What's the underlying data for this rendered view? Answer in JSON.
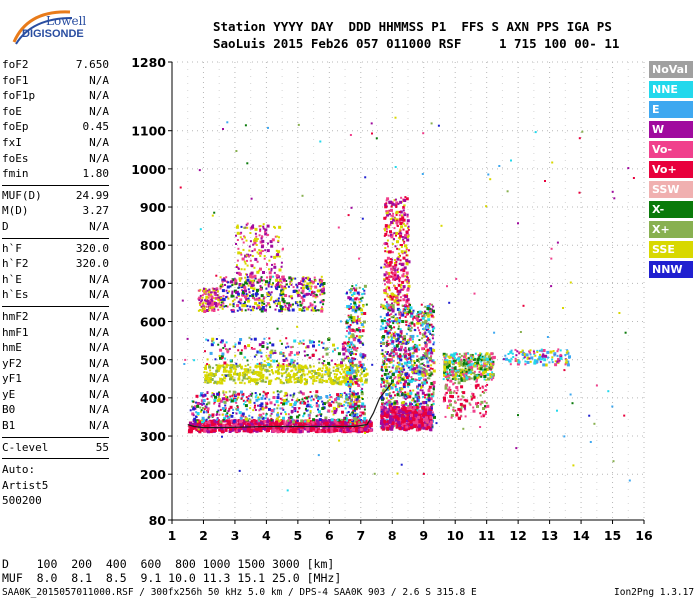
{
  "logo": {
    "top": "Lowell",
    "bottom": "DIGISONDE"
  },
  "header": {
    "line1": "Station YYYY DAY  DDD HHMMSS P1  FFS S AXN PPS IGA PS",
    "line2": "SaoLuis 2015 Feb26 057 011000 RSF     1 715 100 00- 11"
  },
  "params_group1": [
    {
      "label": "foF2",
      "value": "7.650"
    },
    {
      "label": "foF1",
      "value": "N/A"
    },
    {
      "label": "foF1p",
      "value": "N/A"
    },
    {
      "label": "foE",
      "value": "N/A"
    },
    {
      "label": "foEp",
      "value": "0.45"
    },
    {
      "label": "fxI",
      "value": "N/A"
    },
    {
      "label": "foEs",
      "value": "N/A"
    },
    {
      "label": "fmin",
      "value": "1.80"
    }
  ],
  "params_group2": [
    {
      "label": "MUF(D)",
      "value": "24.99"
    },
    {
      "label": "M(D)",
      "value": "3.27"
    },
    {
      "label": "D",
      "value": "N/A"
    }
  ],
  "params_group3": [
    {
      "label": "h`F",
      "value": "320.0"
    },
    {
      "label": "h`F2",
      "value": "320.0"
    },
    {
      "label": "h`E",
      "value": "N/A"
    },
    {
      "label": "h`Es",
      "value": "N/A"
    }
  ],
  "params_group4": [
    {
      "label": "hmF2",
      "value": "N/A"
    },
    {
      "label": "hmF1",
      "value": "N/A"
    },
    {
      "label": "hmE",
      "value": "N/A"
    },
    {
      "label": "yF2",
      "value": "N/A"
    },
    {
      "label": "yF1",
      "value": "N/A"
    },
    {
      "label": "yE",
      "value": "N/A"
    },
    {
      "label": "B0",
      "value": "N/A"
    },
    {
      "label": "B1",
      "value": "N/A"
    }
  ],
  "clevel": {
    "label": "C-level",
    "value": "55"
  },
  "auto": {
    "line1": "Auto:",
    "line2": "Artist5",
    "line3": "500200"
  },
  "legend": [
    {
      "label": "NoVal",
      "color": "#a0a0a0"
    },
    {
      "label": "NNE",
      "color": "#22d8ec"
    },
    {
      "label": "E",
      "color": "#3ea8f0"
    },
    {
      "label": "W",
      "color": "#a00a9e"
    },
    {
      "label": "Vo-",
      "color": "#f0408c"
    },
    {
      "label": "Vo+",
      "color": "#e8003c"
    },
    {
      "label": "SSW",
      "color": "#f0b0b0"
    },
    {
      "label": "X-",
      "color": "#0a7a0a"
    },
    {
      "label": "X+",
      "color": "#88b050"
    },
    {
      "label": "SSE",
      "color": "#d8d800"
    },
    {
      "label": "NNW",
      "color": "#2020d0"
    }
  ],
  "bottom": {
    "d_line": "D    100  200  400  600  800 1000 1500 3000 [km]",
    "muf_line": "MUF  8.0  8.1  8.5  9.1 10.0 11.3 15.1 25.0 [MHz]"
  },
  "footer": {
    "left": "SAA0K_2015057011000.RSF / 300fx256h 50 kHz 5.0 km / DPS-4 SAA0K 903 / 2.6 S 315.8 E",
    "right": "Ion2Png 1.3.17"
  },
  "chart_data": {
    "type": "scatter",
    "xlim": [
      1,
      16
    ],
    "ylim": [
      80,
      1280
    ],
    "x_ticks": [
      "1",
      "2",
      "3",
      "4",
      "5",
      "6",
      "7",
      "8",
      "9",
      "10",
      "11",
      "12",
      "13",
      "14",
      "15",
      "16"
    ],
    "y_ticks": [
      "80",
      "200",
      "300",
      "400",
      "500",
      "600",
      "700",
      "800",
      "900",
      "1000",
      "1100",
      "1280"
    ],
    "grid": true,
    "trace_x": [
      1.5,
      1.7,
      2.0,
      2.5,
      3.0,
      4.0,
      5.0,
      6.0,
      6.8,
      7.2,
      7.4,
      7.6,
      7.8,
      8.0
    ],
    "trace_y": [
      330,
      325,
      322,
      322,
      323,
      325,
      325,
      325,
      325,
      330,
      360,
      400,
      420,
      440
    ]
  }
}
